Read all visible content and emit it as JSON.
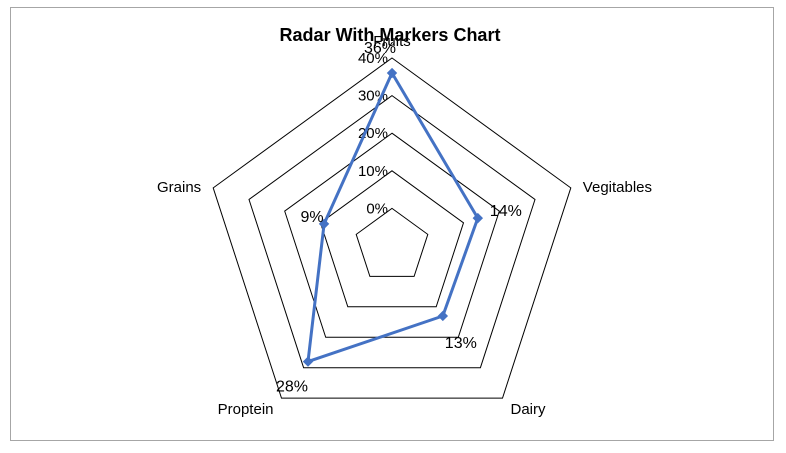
{
  "chart_data": {
    "type": "radar",
    "title": "Radar With Markers Chart",
    "categories": [
      "Fruits",
      "Vegitables",
      "Dairy",
      "Proptein",
      "Grains"
    ],
    "series": [
      {
        "values": [
          36,
          14,
          13,
          28,
          9
        ],
        "data_labels": [
          "36%",
          "14%",
          "13%",
          "28%",
          "9%"
        ]
      }
    ],
    "radial_ticks": [
      "0%",
      "10%",
      "20%",
      "30%",
      "40%"
    ],
    "rlim": [
      0,
      40
    ],
    "grid": true,
    "legend": "none",
    "colors": {
      "series": "#4472c4",
      "grid": "#000000",
      "frame": "#a6a6a6"
    }
  }
}
